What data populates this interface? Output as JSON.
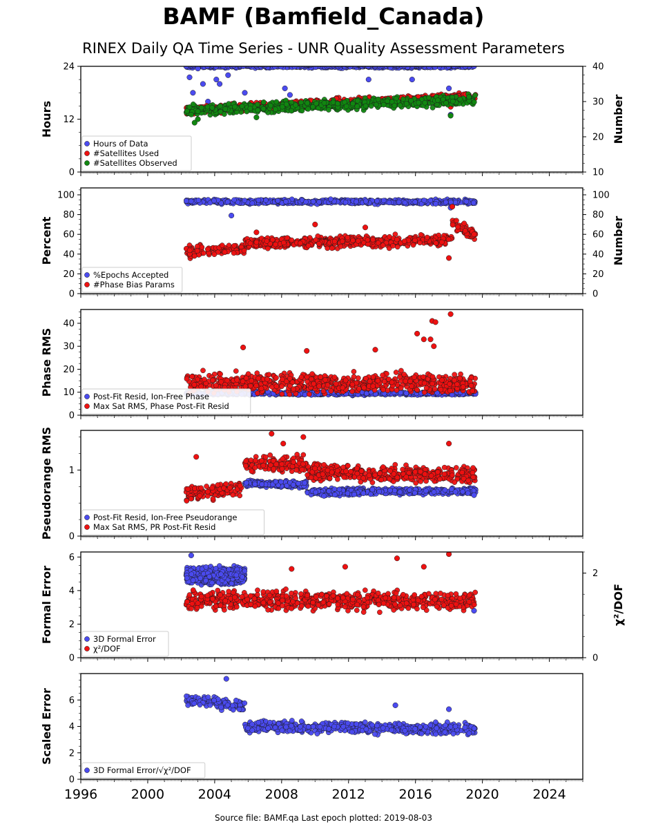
{
  "header": {
    "title": "BAMF (Bamfield_Canada)",
    "subtitle": "RINEX Daily QA Time Series - UNR Quality Assessment Parameters"
  },
  "footer": {
    "source_text": "Source file: BAMF.qa Last epoch plotted: 2019-08-03"
  },
  "colors": {
    "blue": "#4b4bf0",
    "red": "#ee1111",
    "green": "#118811",
    "dark_red": "#8b0000"
  },
  "chart_data": [
    {
      "type": "scatter",
      "ylabel": "Hours",
      "y2label": "Number",
      "xlim": [
        1996,
        2026
      ],
      "ylim": [
        0,
        24
      ],
      "y2lim": [
        10,
        40
      ],
      "x_ticks": [
        "1996",
        "2000",
        "2004",
        "2008",
        "2012",
        "2016",
        "2020",
        "2024"
      ],
      "y_ticks": [
        "0",
        "12",
        "24"
      ],
      "y2_ticks": [
        "10",
        "20",
        "30",
        "40"
      ],
      "legend_position": "lower-left",
      "series": [
        {
          "name": "Hours of Data",
          "color": "#4b4bf0",
          "axis": "left",
          "points": [
            [
              2002.3,
              24
            ],
            [
              2002.5,
              21.5
            ],
            [
              2002.7,
              18
            ],
            [
              2003.0,
              23.5
            ],
            [
              2003.3,
              20
            ],
            [
              2003.6,
              16
            ],
            [
              2004.1,
              21
            ],
            [
              2004.3,
              20
            ],
            [
              2004.8,
              22
            ],
            [
              2005.8,
              18
            ],
            [
              2008.2,
              19
            ],
            [
              2008.5,
              17.5
            ],
            [
              2013.2,
              21
            ],
            [
              2015.8,
              21
            ],
            [
              2018.0,
              19
            ],
            [
              2018.1,
              13
            ],
            [
              2019.5,
              24
            ]
          ],
          "band": {
            "x_start": 2002.3,
            "x_end": 2019.6,
            "center": 24,
            "spread": 0.3
          }
        },
        {
          "name": "#Satellites Used",
          "color": "#ee1111",
          "axis": "right",
          "points": [
            [
              2018.1,
              28.5
            ],
            [
              2019.0,
              32
            ]
          ],
          "band": {
            "x_start": 2002.3,
            "x_end": 2019.6,
            "center_start": 27.5,
            "center_end": 31.5,
            "spread": 1.0
          }
        },
        {
          "name": "#Satellites Observed",
          "color": "#118811",
          "axis": "right",
          "points": [
            [
              2002.8,
              24
            ],
            [
              2003.0,
              25
            ],
            [
              2006.5,
              25.5
            ],
            [
              2018.1,
              26
            ]
          ],
          "band": {
            "x_start": 2002.3,
            "x_end": 2019.6,
            "center_start": 27.5,
            "center_end": 30.5,
            "spread": 1.2
          }
        }
      ]
    },
    {
      "type": "scatter",
      "ylabel": "Percent",
      "y2label": "Number",
      "xlim": [
        1996,
        2026
      ],
      "ylim": [
        0,
        107
      ],
      "y2lim": [
        0,
        107
      ],
      "y_ticks": [
        "0",
        "20",
        "40",
        "60",
        "80",
        "100"
      ],
      "y2_ticks": [
        "0",
        "20",
        "40",
        "60",
        "80",
        "100"
      ],
      "legend_position": "lower-left",
      "series": [
        {
          "name": "%Epochs Accepted",
          "color": "#4b4bf0",
          "axis": "left",
          "points": [
            [
              2005.0,
              79
            ],
            [
              2018.1,
              87
            ]
          ],
          "band": {
            "x_start": 2002.3,
            "x_end": 2019.6,
            "center": 93,
            "spread": 1.8
          }
        },
        {
          "name": "#Phase Bias Params",
          "color": "#ee1111",
          "axis": "right",
          "points": [
            [
              2006.5,
              62
            ],
            [
              2010.0,
              70
            ],
            [
              2013.0,
              67
            ],
            [
              2018.0,
              36
            ],
            [
              2018.2,
              88
            ],
            [
              2019.5,
              60
            ]
          ],
          "band": {
            "x_start": 2002.3,
            "x_end": 2019.6,
            "center_start": 42,
            "center_end": 58,
            "spread": 4.5,
            "step_x": 2005.8,
            "step_to": 51,
            "jump_x": 2018.2,
            "jump_to": 72
          }
        }
      ]
    },
    {
      "type": "scatter",
      "ylabel": "Phase RMS",
      "xlim": [
        1996,
        2026
      ],
      "ylim": [
        0,
        46
      ],
      "y_ticks": [
        "0",
        "10",
        "20",
        "30",
        "40"
      ],
      "legend_position": "lower-left",
      "series": [
        {
          "name": "Post-Fit Resid, Ion-Free Phase",
          "color": "#4b4bf0",
          "axis": "left",
          "points": [
            [
              2019.5,
              10.5
            ]
          ],
          "band": {
            "x_start": 2002.3,
            "x_end": 2019.6,
            "center": 9.5,
            "spread": 0.6
          }
        },
        {
          "name": "Max Sat RMS, Phase Post-Fit Resid",
          "color": "#ee1111",
          "axis": "left",
          "points": [
            [
              2005.7,
              29.5
            ],
            [
              2009.5,
              28
            ],
            [
              2013.6,
              28.5
            ],
            [
              2016.1,
              35.5
            ],
            [
              2016.5,
              33
            ],
            [
              2016.9,
              33
            ],
            [
              2017.0,
              41
            ],
            [
              2017.2,
              40.5
            ],
            [
              2018.1,
              44
            ],
            [
              2017.1,
              30
            ]
          ],
          "band": {
            "x_start": 2002.3,
            "x_end": 2019.6,
            "center": 14,
            "spread": 3.5
          }
        }
      ]
    },
    {
      "type": "scatter",
      "ylabel": "Pseudorange RMS",
      "xlim": [
        1996,
        2026
      ],
      "ylim": [
        0,
        1.6
      ],
      "y_ticks": [
        "0",
        "1"
      ],
      "legend_position": "lower-left",
      "series": [
        {
          "name": "Post-Fit Resid, Ion-Free Pseudorange",
          "color": "#4b4bf0",
          "axis": "left",
          "points": [
            [
              2019.5,
              0.62
            ]
          ],
          "band": {
            "x_start": 2005.8,
            "x_end": 2019.6,
            "center_start": 0.8,
            "center_end": 0.7,
            "spread": 0.04,
            "step_x": 2009.5,
            "step_to": 0.67
          }
        },
        {
          "name": "Max Sat RMS, PR Post-Fit Resid",
          "color": "#ee1111",
          "axis": "left",
          "points": [
            [
              2002.9,
              1.2
            ],
            [
              2007.4,
              1.55
            ],
            [
              2008.1,
              1.4
            ],
            [
              2009.3,
              1.5
            ],
            [
              2018.0,
              1.4
            ]
          ],
          "band": {
            "x_start": 2002.3,
            "x_end": 2019.6,
            "center_start": 0.65,
            "center_end": 0.92,
            "spread": 0.1,
            "step_x": 2005.8,
            "step_to": 1.1,
            "jump_x": 2009.5,
            "jump_to": 0.97
          }
        }
      ]
    },
    {
      "type": "scatter",
      "ylabel": "Formal Error",
      "y2label": "χ²/DOF",
      "xlim": [
        1996,
        2026
      ],
      "ylim": [
        0,
        6.3
      ],
      "y2lim": [
        0,
        2.5
      ],
      "y_ticks": [
        "0",
        "2",
        "4",
        "6"
      ],
      "y2_ticks": [
        "0",
        "2"
      ],
      "legend_position": "lower-left",
      "series": [
        {
          "name": "3D Formal Error",
          "color": "#4b4bf0",
          "axis": "left",
          "points": [
            [
              2002.6,
              6.1
            ],
            [
              2019.5,
              2.8
            ]
          ],
          "band": {
            "x_start": 2002.3,
            "x_end": 2005.8,
            "center": 4.9,
            "spread": 0.4
          }
        },
        {
          "name": "χ²/DOF",
          "color": "#ee1111",
          "axis": "right",
          "points": [
            [
              2011.8,
              2.15
            ],
            [
              2014.9,
              2.35
            ],
            [
              2018.0,
              2.45
            ],
            [
              2008.6,
              2.1
            ],
            [
              2016.5,
              2.15
            ]
          ],
          "band": {
            "x_start": 2002.3,
            "x_end": 2019.6,
            "center": 1.35,
            "spread": 0.18
          }
        }
      ]
    },
    {
      "type": "scatter",
      "ylabel": "Scaled Error",
      "xlim": [
        1996,
        2026
      ],
      "ylim": [
        0,
        8
      ],
      "y_ticks": [
        "0",
        "2",
        "4",
        "6"
      ],
      "legend_position": "lower-left",
      "series": [
        {
          "name": "3D Formal Error/√χ²/DOF",
          "color": "#4b4bf0",
          "axis": "left",
          "points": [
            [
              2004.7,
              7.6
            ],
            [
              2014.8,
              5.6
            ],
            [
              2018.0,
              5.3
            ]
          ],
          "band": {
            "x_start": 2002.3,
            "x_end": 2019.6,
            "center_start": 6.0,
            "center_end": 3.6,
            "spread": 0.35,
            "step_x": 2005.8,
            "step_to": 4.0
          }
        }
      ]
    }
  ]
}
